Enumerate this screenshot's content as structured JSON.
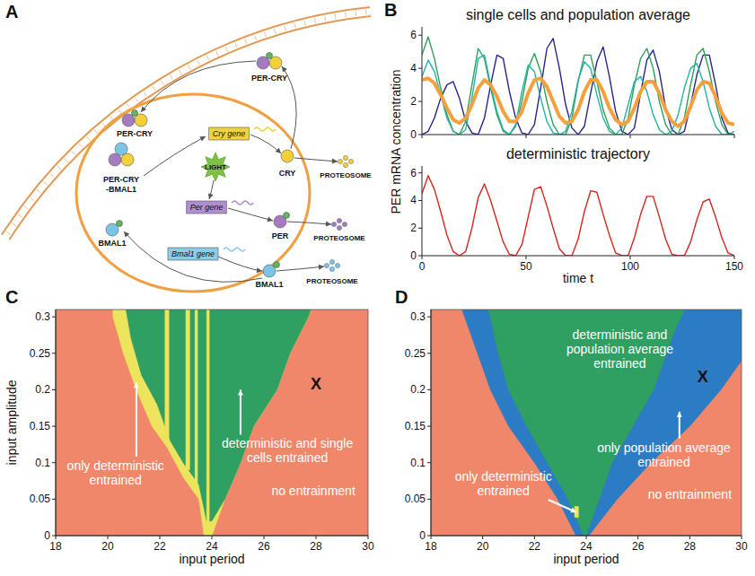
{
  "diagram": {
    "panel": "A",
    "nodes": [
      {
        "label": "PER-CRY"
      },
      {
        "label": "PER-CRY"
      },
      {
        "label": "CRY"
      },
      {
        "label": "PER"
      },
      {
        "label": "BMAL1"
      },
      {
        "label": "BMAL1"
      },
      {
        "label": "PER-CRY"
      },
      {
        "label": "-BMAL1"
      },
      {
        "label": "Cry gene"
      },
      {
        "label": "LIGHT"
      },
      {
        "label": "Per gene"
      },
      {
        "label": "Bmal1 gene"
      },
      {
        "label": "PROTEOSOME"
      },
      {
        "label": "PROTEOSOME"
      },
      {
        "label": "PROTEOSOME"
      }
    ]
  },
  "chart_data": [
    {
      "type": "line",
      "panel": "B",
      "title": "single cells and population average",
      "ylabel": "PER mRNA concentration",
      "x": [
        0,
        3,
        6,
        9,
        12,
        15,
        18,
        21,
        24,
        27,
        30,
        33,
        36,
        39,
        42,
        45,
        48,
        51,
        54,
        57,
        60,
        63,
        66,
        69,
        72,
        75,
        78,
        81,
        84,
        87,
        90,
        93,
        96,
        99,
        102,
        105,
        108,
        111,
        114,
        117,
        120,
        123,
        126,
        129,
        132,
        135,
        138,
        141,
        144,
        147,
        150
      ],
      "series": [
        {
          "color": "#27268f",
          "values": [
            0,
            0.2,
            1.0,
            2.2,
            3.0,
            3.2,
            2.2,
            0.8,
            0.1,
            0,
            1.0,
            3.0,
            4.8,
            4.6,
            2.6,
            1.0,
            0.1,
            0,
            0.6,
            2.8,
            5.2,
            5.8,
            4.0,
            1.8,
            0.4,
            0,
            0.5,
            2.5,
            4.4,
            5.3,
            3.5,
            1.4,
            0.2,
            0,
            0.4,
            2.5,
            4.5,
            5.1,
            3.8,
            1.6,
            0.3,
            0,
            0.2,
            1.8,
            3.6,
            4.8,
            4.8,
            3.0,
            1.0,
            0.1,
            0
          ]
        },
        {
          "color": "#2ca05a",
          "values": [
            4.8,
            5.9,
            4.6,
            2.8,
            1.2,
            0.2,
            0,
            0.8,
            3.0,
            5.2,
            4.6,
            2.8,
            1.2,
            0.2,
            0,
            0.5,
            2.0,
            4.0,
            4.9,
            3.8,
            2.0,
            0.6,
            0,
            0,
            1.0,
            3.2,
            4.8,
            4.8,
            3.2,
            1.5,
            0.4,
            0,
            0,
            1.0,
            3.0,
            4.6,
            5.2,
            4.0,
            2.0,
            0.6,
            0,
            0,
            1.0,
            3.0,
            4.8,
            5.2,
            3.8,
            2.0,
            0.6,
            0,
            0
          ]
        },
        {
          "color": "#22b3a6",
          "values": [
            3.5,
            4.5,
            3.8,
            2.4,
            1.0,
            0.2,
            0,
            0.3,
            2.2,
            4.6,
            4.8,
            3.0,
            1.4,
            0.3,
            0,
            0.6,
            2.6,
            4.2,
            3.8,
            2.2,
            0.8,
            0.1,
            0,
            0.2,
            1.4,
            3.3,
            4.4,
            4.0,
            2.4,
            1.0,
            0.2,
            0,
            0.4,
            1.8,
            3.2,
            3.5,
            2.6,
            1.2,
            0.3,
            0,
            0.2,
            1.2,
            2.8,
            4.0,
            4.3,
            3.2,
            1.6,
            0.5,
            0,
            0,
            0.2
          ]
        },
        {
          "color": "#f4a03c",
          "values": [
            3.3,
            3.4,
            3.1,
            2.4,
            1.6,
            0.9,
            0.7,
            1.0,
            1.8,
            2.8,
            3.3,
            3.0,
            2.3,
            1.4,
            0.8,
            0.8,
            1.4,
            2.5,
            3.3,
            3.4,
            2.9,
            2.0,
            1.1,
            0.7,
            0.8,
            1.5,
            2.6,
            3.3,
            3.3,
            2.6,
            1.6,
            0.9,
            0.6,
            0.8,
            1.6,
            2.6,
            3.2,
            3.2,
            2.5,
            1.5,
            0.8,
            0.5,
            0.8,
            1.7,
            2.7,
            3.2,
            3.1,
            2.3,
            1.3,
            0.7,
            0.6
          ]
        }
      ],
      "xlim": [
        0,
        150
      ],
      "ylim": [
        0,
        6.5
      ],
      "xticks": [
        0,
        50,
        100,
        150
      ],
      "yticks": [
        0,
        2,
        4,
        6
      ],
      "tick_labels": "y"
    },
    {
      "type": "line",
      "title": "deterministic trajectory",
      "xlabel": "time t",
      "x": [
        0,
        3,
        6,
        9,
        12,
        15,
        18,
        21,
        24,
        27,
        30,
        33,
        36,
        39,
        42,
        45,
        48,
        51,
        54,
        57,
        60,
        63,
        66,
        69,
        72,
        75,
        78,
        81,
        84,
        87,
        90,
        93,
        96,
        99,
        102,
        105,
        108,
        111,
        114,
        117,
        120,
        123,
        126,
        129,
        132,
        135,
        138,
        141,
        144,
        147,
        150
      ],
      "series": [
        {
          "color": "#d7261e",
          "values": [
            4.5,
            5.8,
            4.8,
            3.2,
            1.5,
            0.3,
            0,
            0.3,
            2.0,
            4.2,
            5.2,
            4.0,
            2.5,
            1.0,
            0.1,
            0,
            0.8,
            2.8,
            4.8,
            5.0,
            3.6,
            2.0,
            0.5,
            0,
            0,
            1.2,
            3.2,
            4.7,
            4.6,
            3.0,
            1.5,
            0.2,
            0,
            0,
            1.3,
            3.0,
            4.3,
            4.3,
            2.8,
            1.2,
            0.1,
            0,
            0,
            1.0,
            2.6,
            3.9,
            4.1,
            2.8,
            1.3,
            0.2,
            0
          ]
        }
      ],
      "xlim": [
        0,
        150
      ],
      "ylim": [
        0,
        6.5
      ],
      "xticks": [
        0,
        50,
        100,
        150
      ],
      "yticks": [
        0,
        2,
        4,
        6
      ],
      "tick_labels": true
    },
    {
      "type": "area",
      "panel": "C",
      "xlabel": "input period",
      "ylabel": "input amplitude",
      "xlim": [
        18,
        30
      ],
      "ylim": [
        0,
        0.31
      ],
      "xticks": [
        18,
        20,
        22,
        24,
        26,
        28,
        30
      ],
      "yticks": [
        0,
        0.05,
        0.1,
        0.15,
        0.2,
        0.25,
        0.3
      ],
      "regions": [
        {
          "color": "#f0876b",
          "x": [
            18,
            30,
            30,
            18
          ],
          "y": [
            0,
            0,
            0.31,
            0.31
          ]
        },
        {
          "color": "#ece45c",
          "x": [
            23.7,
            23.5,
            22.9,
            22.3,
            21.7,
            21.1,
            20.6,
            20.2,
            20.2,
            27.8,
            27.7,
            27.0,
            26.5,
            25.6,
            25.1,
            24.5,
            24.0
          ],
          "y": [
            0,
            0.05,
            0.08,
            0.12,
            0.15,
            0.2,
            0.25,
            0.3,
            0.31,
            0.31,
            0.3,
            0.25,
            0.2,
            0.15,
            0.1,
            0.05,
            0
          ]
        },
        {
          "color": "#2f9f62",
          "x": [
            23.8,
            23.5,
            22.9,
            22.4,
            21.9,
            21.3,
            20.9,
            20.7,
            27.8,
            27.7,
            27.0,
            26.5,
            25.6,
            25.1,
            24.5,
            24.0
          ],
          "y": [
            0.02,
            0.07,
            0.1,
            0.13,
            0.18,
            0.22,
            0.27,
            0.31,
            0.31,
            0.3,
            0.25,
            0.2,
            0.15,
            0.1,
            0.05,
            0.02
          ]
        },
        {
          "color": "#ece45c",
          "x": [
            22.2,
            22.35,
            22.35,
            22.2
          ],
          "y": [
            0.13,
            0.13,
            0.31,
            0.31
          ]
        },
        {
          "color": "#ece45c",
          "x": [
            23.0,
            23.15,
            23.15,
            23.0
          ],
          "y": [
            0.09,
            0.09,
            0.31,
            0.31
          ]
        },
        {
          "color": "#ece45c",
          "x": [
            23.35,
            23.45,
            23.45,
            23.35
          ],
          "y": [
            0.07,
            0.07,
            0.31,
            0.31
          ]
        },
        {
          "color": "#ece45c",
          "x": [
            23.8,
            23.9,
            23.9,
            23.8
          ],
          "y": [
            0,
            0,
            0.31,
            0.31
          ]
        }
      ],
      "annotations": [
        {
          "text": "only deterministic entrained",
          "x": 20.3,
          "y": 0.09,
          "color": "#ffffff",
          "arrow_to": [
            21.1,
            0.21
          ]
        },
        {
          "text": "deterministic and single cells entrained",
          "x": 26.9,
          "y": 0.12,
          "color": "#ffffff",
          "arrow_to": [
            25.1,
            0.2
          ]
        },
        {
          "text": "no entrainment",
          "x": 27.9,
          "y": 0.055,
          "color": "#ffffff"
        },
        {
          "text": "X",
          "x": 28,
          "y": 0.2,
          "color": "#111111"
        }
      ]
    },
    {
      "type": "area",
      "panel": "D",
      "xlabel": "input period",
      "xlim": [
        18,
        30
      ],
      "ylim": [
        0,
        0.31
      ],
      "xticks": [
        18,
        20,
        22,
        24,
        26,
        28,
        30
      ],
      "yticks": [
        0,
        0.05,
        0.1,
        0.15,
        0.2,
        0.25,
        0.3
      ],
      "regions": [
        {
          "color": "#f0876b",
          "x": [
            18,
            30,
            30,
            18
          ],
          "y": [
            0,
            0,
            0.31,
            0.31
          ]
        },
        {
          "color": "#2b7cc4",
          "x": [
            23.6,
            22.9,
            22.0,
            21.0,
            20.3,
            19.8,
            19.3,
            19.2,
            30,
            30,
            29.2,
            28.0,
            26.5,
            25.2,
            24.1
          ],
          "y": [
            0,
            0.05,
            0.1,
            0.15,
            0.2,
            0.25,
            0.3,
            0.31,
            0.31,
            0.24,
            0.2,
            0.15,
            0.1,
            0.05,
            0
          ]
        },
        {
          "color": "#2f9f62",
          "x": [
            23.9,
            23.3,
            22.5,
            21.7,
            21.0,
            20.6,
            20.3,
            20.2,
            27.8,
            27.4,
            26.6,
            25.8,
            25.0,
            24.5,
            24.0
          ],
          "y": [
            0,
            0.05,
            0.1,
            0.15,
            0.2,
            0.25,
            0.3,
            0.31,
            0.31,
            0.28,
            0.2,
            0.15,
            0.1,
            0.05,
            0
          ]
        },
        {
          "color": "#ece45c",
          "x": [
            23.55,
            23.7,
            23.7,
            23.55
          ],
          "y": [
            0.025,
            0.025,
            0.04,
            0.04
          ]
        }
      ],
      "annotations": [
        {
          "text": "deterministic and population average entrained",
          "x": 25.3,
          "y": 0.27,
          "color": "#ffffff"
        },
        {
          "text": "only deterministic entrained",
          "x": 20.8,
          "y": 0.075,
          "color": "#ffffff",
          "arrow_to": [
            23.62,
            0.032
          ]
        },
        {
          "text": "only population average entrained",
          "x": 27.0,
          "y": 0.115,
          "color": "#ffffff",
          "arrow_to": [
            27.6,
            0.17
          ]
        },
        {
          "text": "no entrainment",
          "x": 28.0,
          "y": 0.05,
          "color": "#ffffff"
        },
        {
          "text": "X",
          "x": 28.5,
          "y": 0.21,
          "color": "#111111"
        }
      ]
    }
  ]
}
